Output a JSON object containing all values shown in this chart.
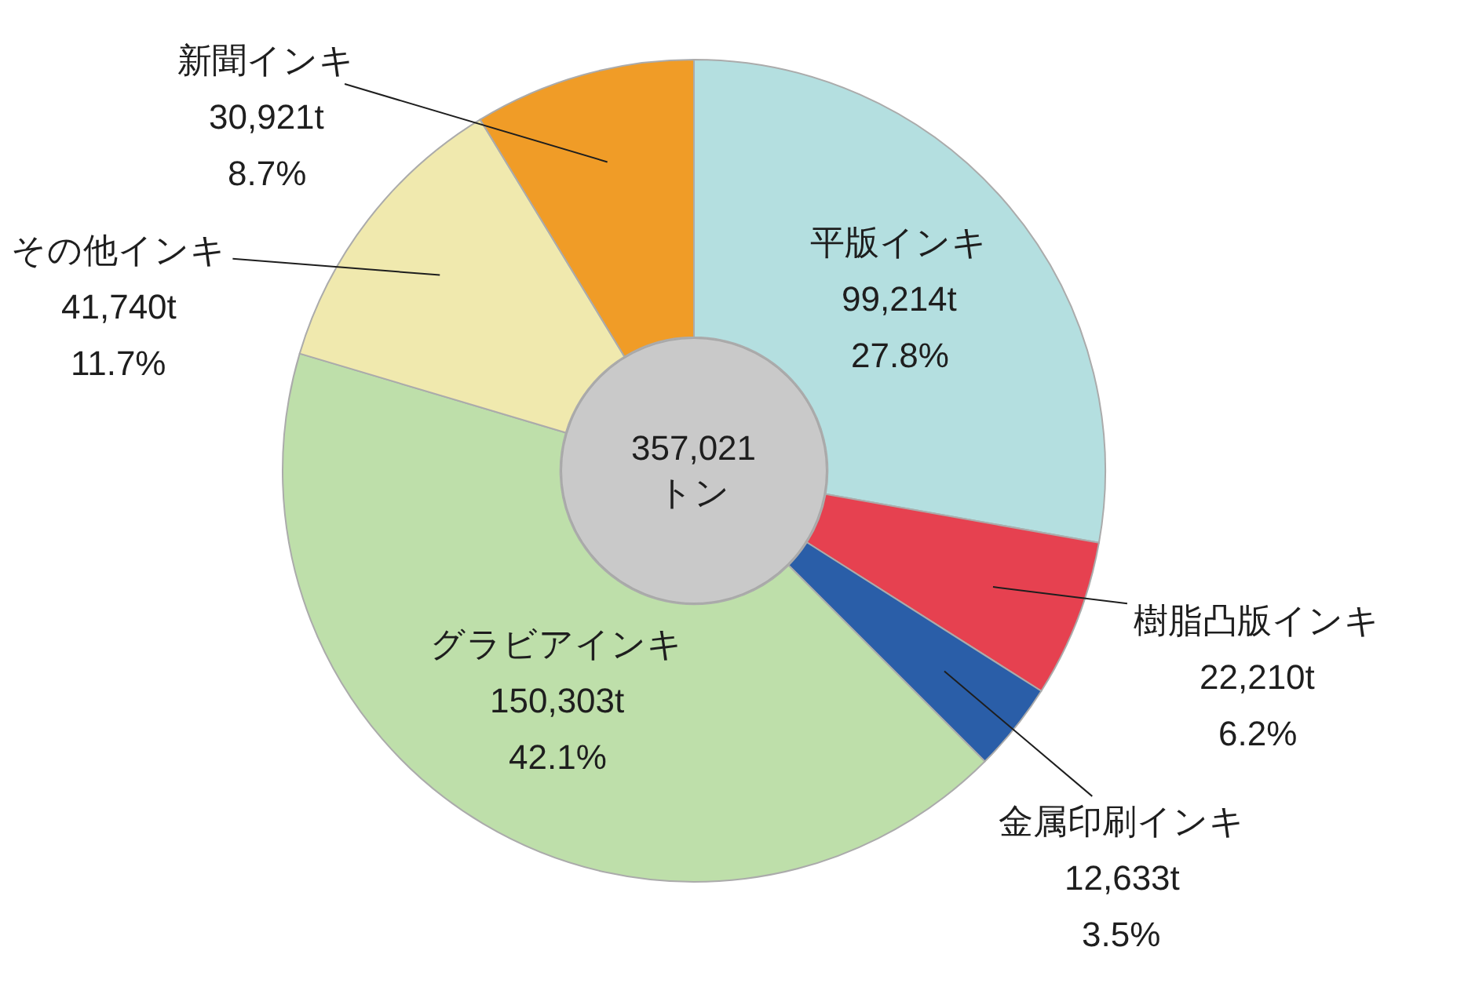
{
  "chart_data": {
    "type": "donut",
    "categories": [
      "平版インキ",
      "樹脂凸版インキ",
      "金属印刷インキ",
      "グラビアインキ",
      "その他インキ",
      "新聞インキ"
    ],
    "values": [
      27.8,
      6.2,
      3.5,
      42.1,
      11.7,
      8.7
    ],
    "colors": [
      "#b4dfe0",
      "#e64150",
      "#2a5ea8",
      "#bedfaa",
      "#f0e9ae",
      "#f09c27"
    ],
    "value_labels": [
      "99,214t\n27.8%",
      "22,210t\n6.2%",
      "12,633t\n3.5%",
      "150,303t\n42.1%",
      "41,740t\n11.7%",
      "30,921t\n8.7%"
    ],
    "annotations": [
      "357,021\nトン"
    ]
  }
}
